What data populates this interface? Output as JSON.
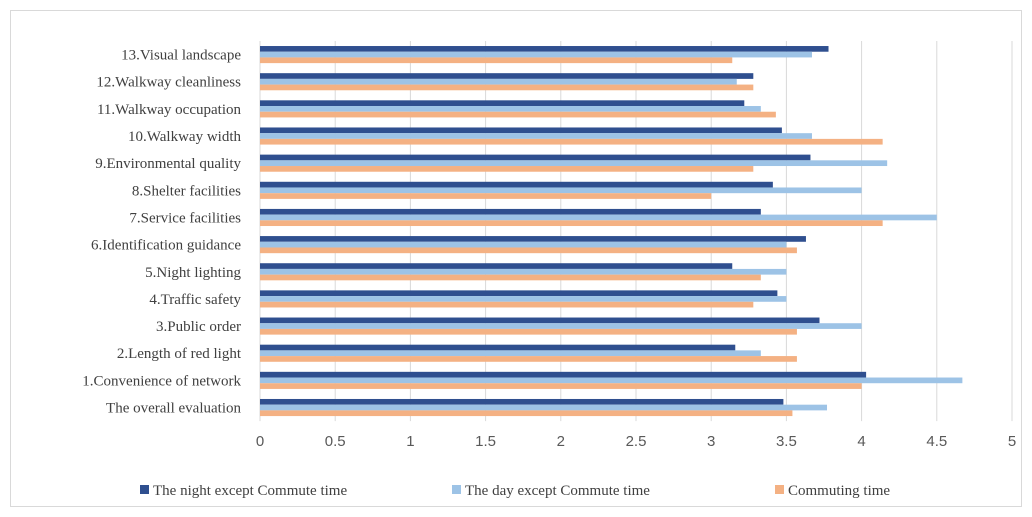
{
  "chart_data": {
    "type": "bar",
    "orientation": "horizontal",
    "categories": [
      "13.Visual landscape",
      "12.Walkway cleanliness",
      "11.Walkway occupation",
      "10.Walkway width",
      "9.Environmental quality",
      "8.Shelter facilities",
      "7.Service facilities",
      "6.Identification guidance",
      "5.Night lighting",
      "4.Traffic safety",
      "3.Public order",
      "2.Length of red light",
      "1.Convenience of network",
      "The overall evaluation"
    ],
    "series": [
      {
        "name": "The night except Commute time",
        "color": "#2f4f8f",
        "values": [
          3.78,
          3.28,
          3.22,
          3.47,
          3.66,
          3.41,
          3.33,
          3.63,
          3.14,
          3.44,
          3.72,
          3.16,
          4.03,
          3.48
        ]
      },
      {
        "name": "The day except Commute time",
        "color": "#9dc3e6",
        "values": [
          3.67,
          3.17,
          3.33,
          3.67,
          4.17,
          4.0,
          4.5,
          3.5,
          3.5,
          3.5,
          4.0,
          3.33,
          4.67,
          3.77
        ]
      },
      {
        "name": "Commuting time",
        "color": "#f4b183",
        "values": [
          3.14,
          3.28,
          3.43,
          4.14,
          3.28,
          3.0,
          4.14,
          3.57,
          3.33,
          3.28,
          3.57,
          3.57,
          4.0,
          3.54
        ]
      }
    ],
    "xlim": [
      0,
      5
    ],
    "xticks": [
      "0",
      "0.5",
      "1",
      "1.5",
      "2",
      "2.5",
      "3",
      "3.5",
      "4",
      "4.5",
      "5"
    ],
    "grid": "vertical",
    "legend_position": "bottom",
    "title": "",
    "xlabel": "",
    "ylabel": ""
  }
}
